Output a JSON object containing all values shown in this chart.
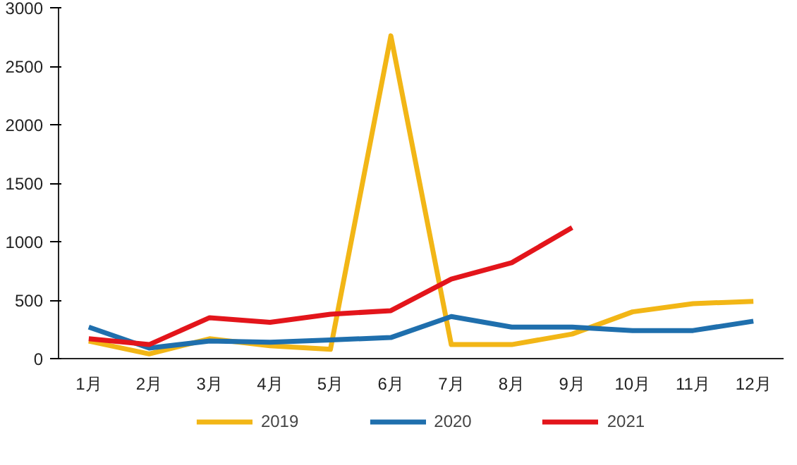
{
  "chart_data": {
    "type": "line",
    "categories": [
      "1月",
      "2月",
      "3月",
      "4月",
      "5月",
      "6月",
      "7月",
      "8月",
      "9月",
      "10月",
      "11月",
      "12月"
    ],
    "series": [
      {
        "name": "2019",
        "color": "#f2b616",
        "values": [
          150,
          40,
          170,
          110,
          80,
          2760,
          120,
          120,
          210,
          400,
          470,
          490
        ]
      },
      {
        "name": "2020",
        "color": "#1f6fad",
        "values": [
          270,
          90,
          150,
          140,
          160,
          180,
          360,
          270,
          270,
          240,
          240,
          320
        ]
      },
      {
        "name": "2021",
        "color": "#e3151b",
        "values": [
          170,
          120,
          350,
          310,
          380,
          410,
          680,
          820,
          1120,
          null,
          null,
          null
        ]
      }
    ],
    "ylim": [
      0,
      3000
    ],
    "yticks": [
      0,
      500,
      1000,
      1500,
      2000,
      2500,
      3000
    ],
    "grid": false,
    "legend": "bottom",
    "marker": "none",
    "line_style": "solid"
  }
}
